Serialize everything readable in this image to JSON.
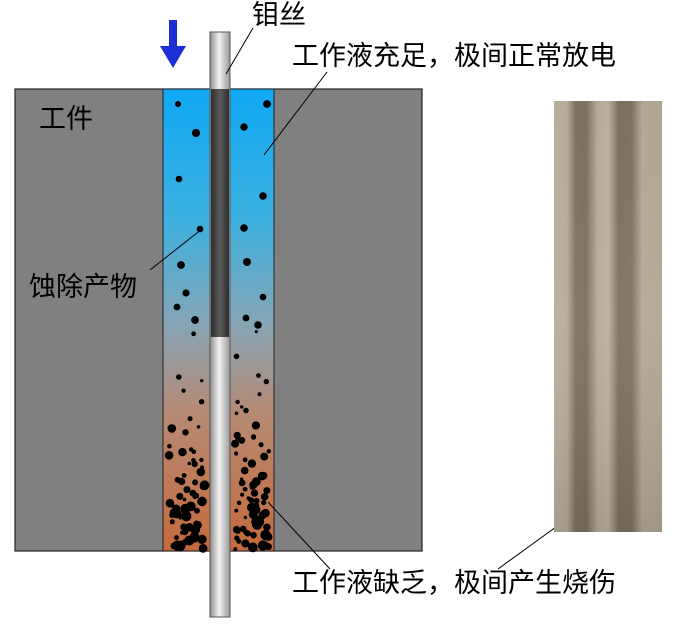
{
  "labels": {
    "wire": "钼丝",
    "workpiece": "工件",
    "sufficient": "工作液充足，极间正常放电",
    "debris": "蚀除产物",
    "insufficient": "工作液缺乏，极间产生烧伤"
  },
  "icons": {
    "feed_arrow": "arrow-down-icon"
  },
  "colors": {
    "workpiece": "#808080",
    "fluid_top": "#1ea7f2",
    "fluid_mid": "#7aa0b6",
    "fluid_bottom": "#c37045",
    "arrow": "#1a2fd6",
    "debris": "#000000"
  }
}
